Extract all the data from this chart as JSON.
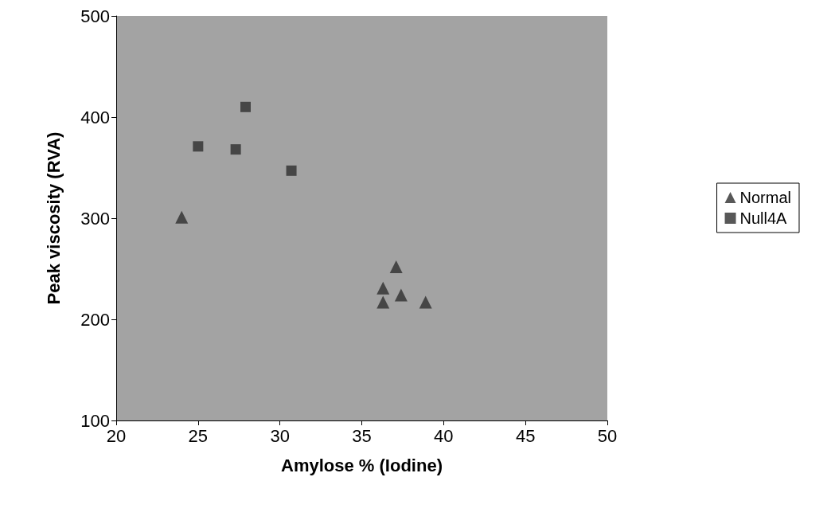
{
  "chart_data": {
    "type": "scatter",
    "xlabel": "Amylose % (Iodine)",
    "ylabel": "Peak viscosity (RVA)",
    "xlim": [
      20,
      50
    ],
    "xticks": [
      20,
      25,
      30,
      35,
      40,
      45,
      50
    ],
    "ylim": [
      100,
      500
    ],
    "yticks": [
      100,
      200,
      300,
      400,
      500
    ],
    "grid": false,
    "legend": "right",
    "series": [
      {
        "name": "Normal",
        "color": "#2e2e2e",
        "marker": "triangle",
        "x": [
          24.0,
          37.1,
          36.3,
          37.4,
          36.3,
          38.9
        ],
        "values": [
          301,
          252,
          231,
          224,
          217,
          217
        ]
      },
      {
        "name": "Null4A",
        "color": "#2e2e2e",
        "marker": "square",
        "x": [
          27.9,
          25.0,
          27.3,
          30.7
        ],
        "values": [
          410,
          371,
          368,
          347
        ]
      }
    ]
  }
}
